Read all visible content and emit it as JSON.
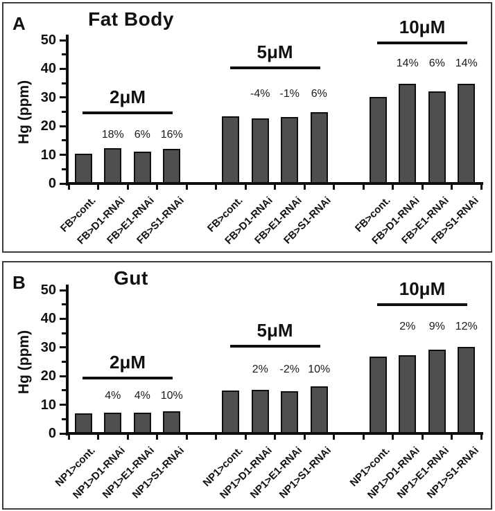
{
  "colors": {
    "bar_fill": "#4f4f4f",
    "bar_border": "#0f0f0f",
    "axis_ink": "#0f0f0f",
    "panel_border": "#3c3c3c",
    "text": "#111111"
  },
  "chart_data": [
    {
      "type": "bar",
      "panel_letter": "A",
      "title": "Fat Body",
      "ylabel": "Hg (ppm)",
      "xlabel": "",
      "ylim": [
        0,
        50
      ],
      "ytick_step": 10,
      "minor_tick_step": 5,
      "ytick_labels": [
        "0",
        "10",
        "20",
        "30",
        "40",
        "50"
      ],
      "grid": false,
      "groups": [
        {
          "label": "2μM",
          "line_y": 24.2,
          "pct_y": 17.0,
          "categories": [
            "FB>cont.",
            "FB>D1-RNAi",
            "FB>E1-RNAi",
            "FB>S1-RNAi"
          ],
          "values": [
            10.4,
            12.3,
            11.0,
            12.1
          ],
          "pcts": [
            "",
            "18%",
            "6%",
            "16%"
          ]
        },
        {
          "label": "5μM",
          "line_y": 39.9,
          "pct_y": 31.2,
          "categories": [
            "FB>cont.",
            "FB>D1-RNAi",
            "FB>E1-RNAi",
            "FB>S1-RNAi"
          ],
          "values": [
            23.5,
            22.6,
            23.3,
            24.9
          ],
          "pcts": [
            "",
            "-4%",
            "-1%",
            "6%"
          ]
        },
        {
          "label": "10μM",
          "line_y": 48.6,
          "pct_y": 41.8,
          "categories": [
            "FB>cont.",
            "FB>D1-RNAi",
            "FB>E1-RNAi",
            "FB>S1-RNAi"
          ],
          "values": [
            30.3,
            34.8,
            32.1,
            34.7
          ],
          "pcts": [
            "",
            "14%",
            "6%",
            "14%"
          ]
        }
      ]
    },
    {
      "type": "bar",
      "panel_letter": "B",
      "title": "Gut",
      "ylabel": "Hg (ppm)",
      "xlabel": "",
      "ylim": [
        0,
        50
      ],
      "ytick_step": 10,
      "minor_tick_step": 5,
      "ytick_labels": [
        "0",
        "10",
        "20",
        "30",
        "40",
        "50"
      ],
      "grid": false,
      "groups": [
        {
          "label": "2μM",
          "line_y": 18.9,
          "pct_y": 13.0,
          "categories": [
            "NP1>cont.",
            "NP1>D1-RNAi",
            "NP1>E1-RNAi",
            "NP1>S1-RNAi"
          ],
          "values": [
            7.0,
            7.3,
            7.3,
            7.7
          ],
          "pcts": [
            "",
            "4%",
            "4%",
            "10%"
          ]
        },
        {
          "label": "5μM",
          "line_y": 30.0,
          "pct_y": 22.3,
          "categories": [
            "NP1>cont.",
            "NP1>D1-RNAi",
            "NP1>E1-RNAi",
            "NP1>S1-RNAi"
          ],
          "values": [
            15.0,
            15.3,
            14.7,
            16.5
          ],
          "pcts": [
            "",
            "2%",
            "-2%",
            "10%"
          ]
        },
        {
          "label": "10μM",
          "line_y": 44.5,
          "pct_y": 37.2,
          "categories": [
            "NP1>cont.",
            "NP1>D1-RNAi",
            "NP1>E1-RNAi",
            "NP1>S1-RNAi"
          ],
          "values": [
            26.9,
            27.4,
            29.3,
            30.1
          ],
          "pcts": [
            "",
            "2%",
            "9%",
            "12%"
          ]
        }
      ]
    }
  ]
}
